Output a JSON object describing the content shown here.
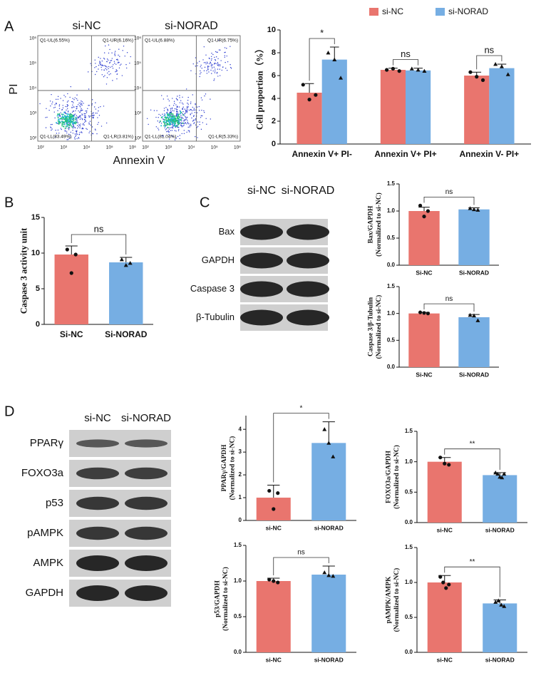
{
  "panel_labels": [
    "A",
    "B",
    "C",
    "D"
  ],
  "flow": {
    "xlabel": "Annexin V",
    "ylabel": "PI",
    "ticks": [
      "10²",
      "10³",
      "10⁴",
      "10⁵",
      "10⁶"
    ],
    "plots": [
      {
        "title": "si-NC",
        "quadrants": [
          "Q1-UL(6.55%)",
          "Q1-UR(6.16%)",
          "Q1-LL(83.49%)",
          "Q1-LR(3.81%)"
        ]
      },
      {
        "title": "si-NORAD",
        "quadrants": [
          "Q1-UL(6.88%)",
          "Q1-UR(6.75%)",
          "Q1-LL(81.04%)",
          "Q1-LR(5.33%)"
        ]
      }
    ]
  },
  "blots": [
    {
      "lanes": [
        "si-NC",
        "si-NORAD"
      ],
      "rows": [
        "Bax",
        "GAPDH",
        "Caspase 3",
        "β-Tubulin"
      ]
    },
    {
      "lanes": [
        "si-NC",
        "si-NORAD"
      ],
      "rows": [
        "PPARγ",
        "FOXO3a",
        "p53",
        "pAMPK",
        "AMPK",
        "GAPDH"
      ]
    }
  ],
  "chart_data": [
    {
      "type": "bar",
      "ylabel": "Cell proportion（%）",
      "legend": "top",
      "categories": [
        "Annexin V+ PI-",
        "Annexin V+ PI+",
        "Annexin V- PI+"
      ],
      "series": [
        {
          "name": "si-NC",
          "color": "#e9756e",
          "values": [
            4.5,
            6.5,
            6.0
          ],
          "errors": [
            0.8,
            0.15,
            0.3
          ],
          "points": [
            [
              5.2,
              3.9,
              4.3
            ],
            [
              6.5,
              6.6,
              6.4
            ],
            [
              6.3,
              5.9,
              5.6
            ]
          ]
        },
        {
          "name": "si-NORAD",
          "color": "#76aee3",
          "values": [
            7.4,
            6.45,
            6.65
          ],
          "errors": [
            1.1,
            0.2,
            0.35
          ],
          "points": [
            [
              8.0,
              7.4,
              5.8
            ],
            [
              6.6,
              6.5,
              6.4
            ],
            [
              7.0,
              6.8,
              6.1
            ]
          ]
        }
      ],
      "annotations": [
        "*",
        "ns",
        "ns"
      ],
      "ylim": [
        0,
        10
      ],
      "yticks": [
        0,
        2,
        4,
        6,
        8,
        10
      ]
    },
    {
      "type": "bar",
      "ylabel": "Caspase 3 activity unit",
      "categories": [
        "Si-NC",
        "Si-NORAD"
      ],
      "colors": [
        "#e9756e",
        "#76aee3"
      ],
      "values": [
        9.8,
        8.7
      ],
      "errors": [
        1.2,
        0.7
      ],
      "points": [
        [
          10.5,
          7.2,
          9.8
        ],
        [
          9.1,
          8.3,
          8.6
        ]
      ],
      "annotation": "ns",
      "ylim": [
        0,
        15
      ],
      "yticks": [
        0,
        5,
        10,
        15
      ]
    },
    {
      "type": "bar",
      "ylabel": [
        "Bax/GAPDH",
        "(Normalized to si-NC)"
      ],
      "categories": [
        "Si-NC",
        "Si-NORAD"
      ],
      "colors": [
        "#e9756e",
        "#76aee3"
      ],
      "values": [
        1.0,
        1.03
      ],
      "errors": [
        0.07,
        0.03
      ],
      "points": [
        [
          1.1,
          0.9,
          1.0
        ],
        [
          1.05,
          1.03,
          1.02
        ]
      ],
      "annotation": "ns",
      "ylim": [
        0,
        1.5
      ],
      "yticks": [
        {
          "value": 0,
          "label": "0.0"
        },
        0.5,
        {
          "value": 1,
          "label": "1.0"
        },
        1.5
      ]
    },
    {
      "type": "bar",
      "ylabel": [
        "Caspase 3/β-Tubulin",
        "(Normalized to si-NC)"
      ],
      "categories": [
        "Si-NC",
        "Si-NORAD"
      ],
      "colors": [
        "#e9756e",
        "#76aee3"
      ],
      "values": [
        1.0,
        0.93
      ],
      "errors": [
        0.02,
        0.05
      ],
      "points": [
        [
          1.02,
          1.01,
          1.0
        ],
        [
          0.97,
          0.96,
          0.87
        ]
      ],
      "annotation": "ns",
      "ylim": [
        0,
        1.5
      ],
      "yticks": [
        {
          "value": 0,
          "label": "0.0"
        },
        0.5,
        {
          "value": 1,
          "label": "1.0"
        },
        1.5
      ]
    },
    {
      "type": "bar",
      "ylabel": [
        "PPARγ/GAPDH",
        "(Normalized to si-NC)"
      ],
      "categories": [
        "si-NC",
        "si-NORAD"
      ],
      "colors": [
        "#e9756e",
        "#76aee3"
      ],
      "values": [
        1.0,
        3.4
      ],
      "errors": [
        0.55,
        0.93
      ],
      "points": [
        [
          1.3,
          0.5,
          1.2
        ],
        [
          4.0,
          3.4,
          2.8
        ]
      ],
      "annotation": "*",
      "ylim": [
        0,
        4.6
      ],
      "yticks": [
        0,
        1,
        2,
        3,
        4
      ]
    },
    {
      "type": "bar",
      "ylabel": [
        "FOXO3a/GAPDH",
        "(Normalized to si-NC)"
      ],
      "categories": [
        "si-NC",
        "si-NORAD"
      ],
      "colors": [
        "#e9756e",
        "#76aee3"
      ],
      "values": [
        1.0,
        0.78
      ],
      "errors": [
        0.07,
        0.04
      ],
      "points": [
        [
          1.07,
          0.97,
          0.95
        ],
        [
          0.82,
          0.8,
          0.75,
          0.74,
          0.8
        ]
      ],
      "annotation": "**",
      "ylim": [
        0,
        1.5
      ],
      "yticks": [
        {
          "value": 0,
          "label": "0.0"
        },
        0.5,
        {
          "value": 1,
          "label": "1.0"
        },
        1.5
      ]
    },
    {
      "type": "bar",
      "ylabel": [
        "p53/GAPDH",
        "(Normalized to si-NC)"
      ],
      "categories": [
        "si-NC",
        "si-NORAD"
      ],
      "colors": [
        "#e9756e",
        "#76aee3"
      ],
      "values": [
        1.0,
        1.09
      ],
      "errors": [
        0.04,
        0.12
      ],
      "points": [
        [
          1.02,
          1.0,
          0.98
        ],
        [
          1.12,
          1.08,
          1.07
        ]
      ],
      "annotation": "ns",
      "ylim": [
        0,
        1.5
      ],
      "yticks": [
        {
          "value": 0,
          "label": "0.0"
        },
        0.5,
        {
          "value": 1,
          "label": "1.0"
        },
        1.5
      ]
    },
    {
      "type": "bar",
      "ylabel": [
        "pAMPK/AMPK",
        "(Normalized to si-NC)"
      ],
      "categories": [
        "si-NC",
        "si-NORAD"
      ],
      "colors": [
        "#e9756e",
        "#76aee3"
      ],
      "values": [
        1.0,
        0.7
      ],
      "errors": [
        0.1,
        0.05
      ],
      "points": [
        [
          1.08,
          1.0,
          0.92,
          0.97
        ],
        [
          0.72,
          0.74,
          0.68,
          0.66
        ]
      ],
      "annotation": "**",
      "ylim": [
        0,
        1.5
      ],
      "yticks": [
        {
          "value": 0,
          "label": "0.0"
        },
        0.5,
        {
          "value": 1,
          "label": "1.0"
        },
        1.5
      ]
    }
  ]
}
